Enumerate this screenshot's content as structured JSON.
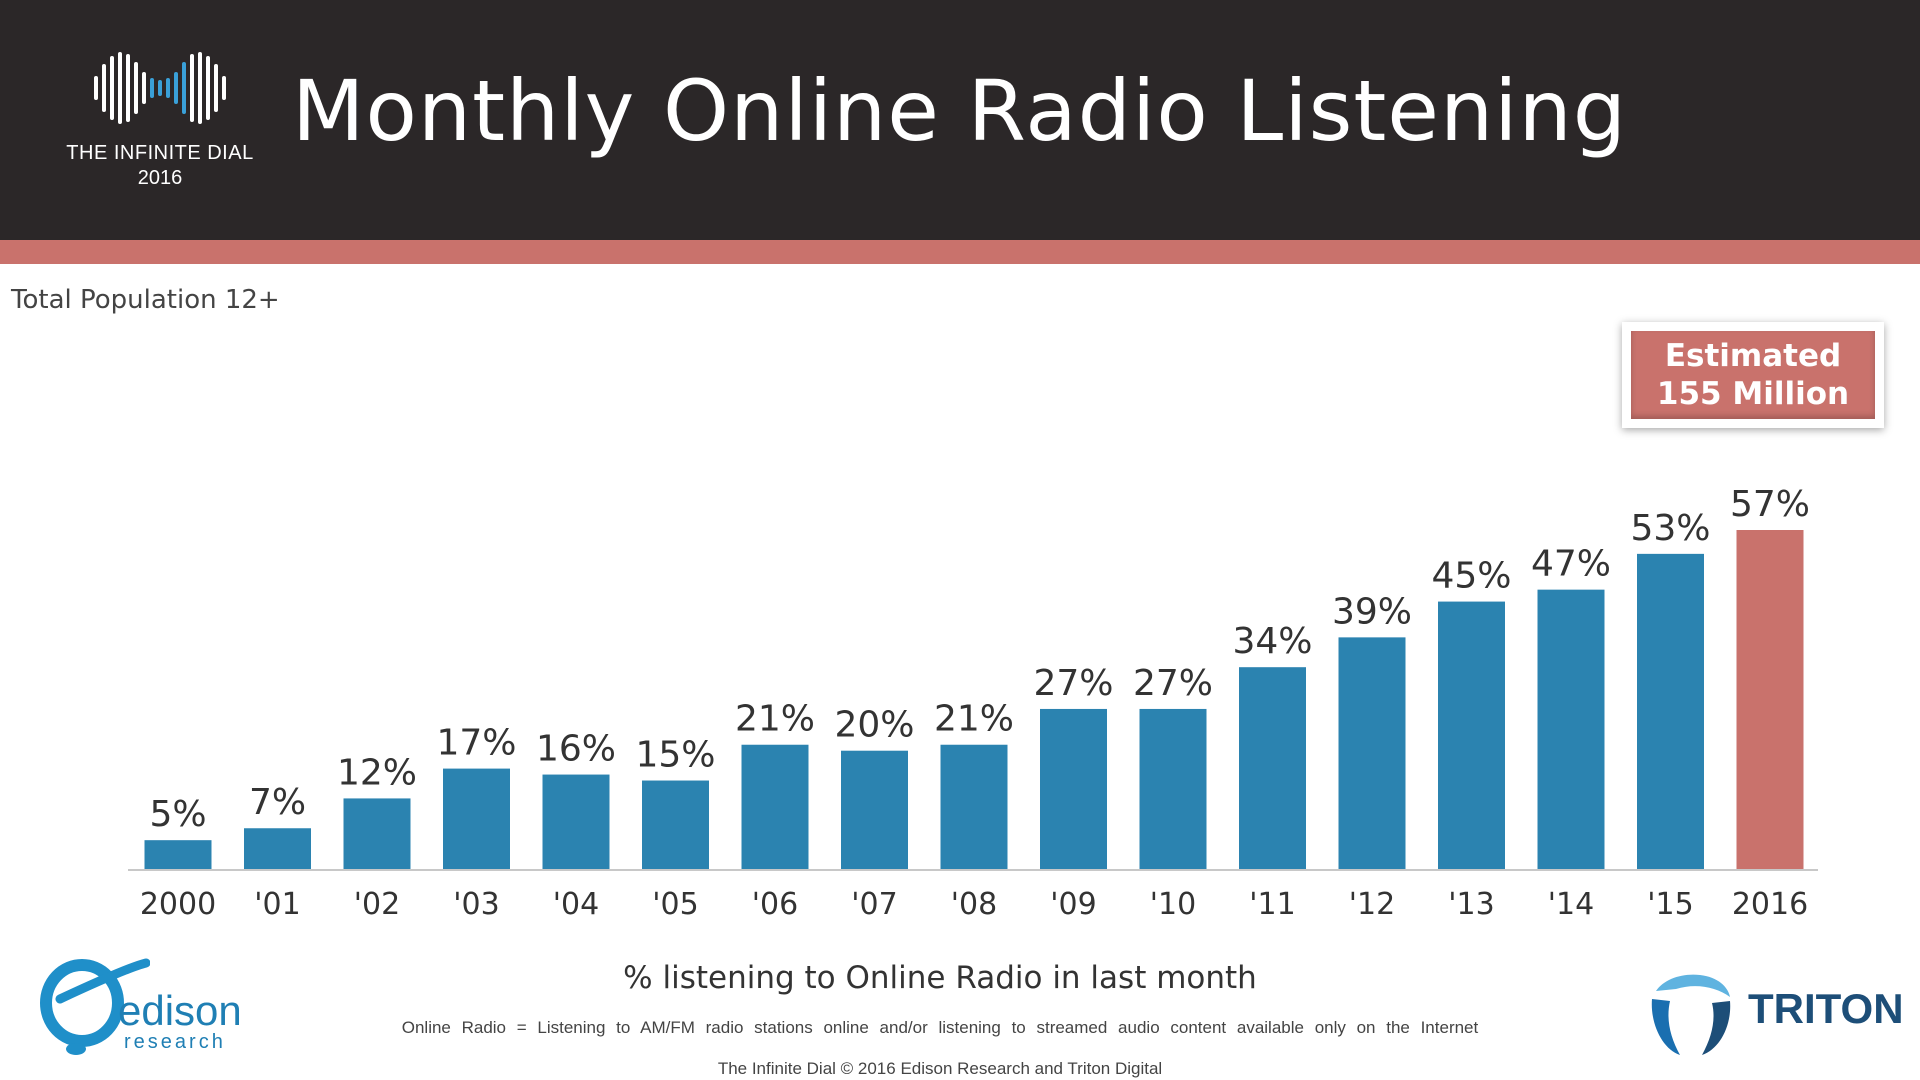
{
  "header": {
    "title": "Monthly Online Radio Listening",
    "logo_name": "THE INFINITE DIAL",
    "logo_year": "2016"
  },
  "subtitle": "Total Population 12+",
  "callout": {
    "line1": "Estimated",
    "line2": "155 Million"
  },
  "footer": {
    "x_caption": "% listening to Online Radio in last month",
    "definition": "Online Radio = Listening to AM/FM radio stations online and/or listening to streamed audio content available only on the Internet",
    "copyright": "The Infinite Dial   © 2016 Edison Research and Triton Digital",
    "edison_logo_text": "edison",
    "edison_logo_sub": "research",
    "triton_logo_text": "TRITON"
  },
  "colors": {
    "bar": "#2b83b0",
    "highlight": "#c9726c",
    "header_bg": "#2b2728",
    "accent": "#c9726c"
  },
  "chart_data": {
    "type": "bar",
    "categories": [
      "2000",
      "'01",
      "'02",
      "'03",
      "'04",
      "'05",
      "'06",
      "'07",
      "'08",
      "'09",
      "'10",
      "'11",
      "'12",
      "'13",
      "'14",
      "'15",
      "2016"
    ],
    "values": [
      5,
      7,
      12,
      17,
      16,
      15,
      21,
      20,
      21,
      27,
      27,
      34,
      39,
      45,
      47,
      53,
      57
    ],
    "labels": [
      "5%",
      "7%",
      "12%",
      "17%",
      "16%",
      "15%",
      "21%",
      "20%",
      "21%",
      "27%",
      "27%",
      "34%",
      "39%",
      "45%",
      "47%",
      "53%",
      "57%"
    ],
    "highlight_index": 16,
    "ylim": [
      0,
      57
    ],
    "grid": false,
    "legend": "none"
  }
}
